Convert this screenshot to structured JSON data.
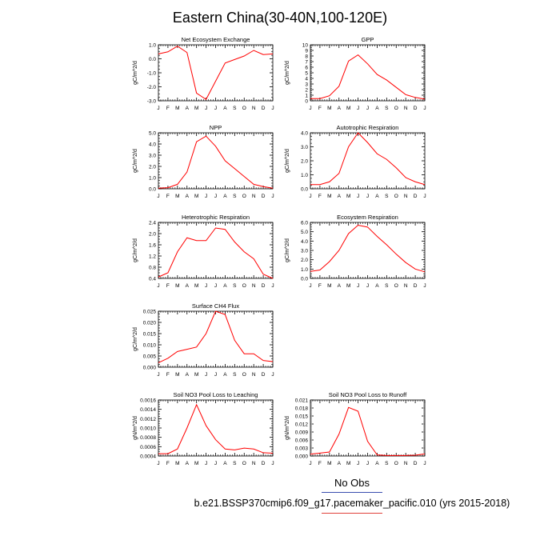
{
  "page": {
    "title": "Eastern China(30-40N,100-120E)"
  },
  "legend": {
    "obs_label": "No Obs",
    "case_label": "b.e21.BSSP370cmip6.f09_g17.pacemaker_pacific.010 (yrs 2015-2018)",
    "obs_color": "#3b4fb0",
    "case_color": "#e0413a"
  },
  "chart_data": [
    {
      "id": "nee",
      "type": "line",
      "title": "Net Ecosystem Exchange",
      "ylabel": "gC/m^2/d",
      "x": [
        "J",
        "F",
        "M",
        "A",
        "M",
        "J",
        "J",
        "A",
        "S",
        "O",
        "N",
        "D",
        "J"
      ],
      "ylim": [
        -3.0,
        1.0
      ],
      "yticks": [
        1.0,
        0.0,
        -1.0,
        -2.0,
        -3.0
      ],
      "ytick_labels": [
        "1.0",
        "0.0",
        "-1.0",
        "-2.0",
        "-3.0"
      ],
      "series": [
        {
          "color": "#ff0000",
          "values": [
            0.35,
            0.5,
            0.9,
            0.45,
            -2.45,
            -2.9,
            -1.6,
            -0.3,
            -0.05,
            0.2,
            0.6,
            0.3,
            0.35
          ]
        }
      ]
    },
    {
      "id": "gpp",
      "type": "line",
      "title": "GPP",
      "ylabel": "gC/m^2/d",
      "x": [
        "J",
        "F",
        "M",
        "A",
        "M",
        "J",
        "J",
        "A",
        "S",
        "O",
        "N",
        "D",
        "J"
      ],
      "ylim": [
        0,
        10
      ],
      "yticks": [
        0,
        1,
        2,
        3,
        4,
        5,
        6,
        7,
        8,
        9,
        10
      ],
      "ytick_labels": [
        "0",
        "1",
        "2",
        "3",
        "4",
        "5",
        "6",
        "7",
        "8",
        "9",
        "10"
      ],
      "series": [
        {
          "color": "#ff0000",
          "values": [
            0.4,
            0.4,
            0.9,
            2.6,
            7.1,
            8.2,
            6.6,
            4.7,
            3.7,
            2.4,
            1.1,
            0.6,
            0.3
          ]
        }
      ]
    },
    {
      "id": "npp",
      "type": "line",
      "title": "NPP",
      "ylabel": "gC/m^2/d",
      "x": [
        "J",
        "F",
        "M",
        "A",
        "M",
        "J",
        "J",
        "A",
        "S",
        "O",
        "N",
        "D",
        "J"
      ],
      "ylim": [
        0.0,
        5.0
      ],
      "yticks": [
        0.0,
        1.0,
        2.0,
        3.0,
        4.0,
        5.0
      ],
      "ytick_labels": [
        "0.0",
        "1.0",
        "2.0",
        "3.0",
        "4.0",
        "5.0"
      ],
      "series": [
        {
          "color": "#ff0000",
          "values": [
            0.05,
            0.1,
            0.4,
            1.5,
            4.2,
            4.7,
            3.8,
            2.5,
            1.8,
            1.1,
            0.4,
            0.2,
            0.05
          ]
        }
      ]
    },
    {
      "id": "ar",
      "type": "line",
      "title": "Autotrophic Respiration",
      "ylabel": "gC/m^2/d",
      "x": [
        "J",
        "F",
        "M",
        "A",
        "M",
        "J",
        "J",
        "A",
        "S",
        "O",
        "N",
        "D",
        "J"
      ],
      "ylim": [
        0.0,
        4.0
      ],
      "yticks": [
        0.0,
        1.0,
        2.0,
        3.0,
        4.0
      ],
      "ytick_labels": [
        "0.0",
        "1.0",
        "2.0",
        "3.0",
        "4.0"
      ],
      "series": [
        {
          "color": "#ff0000",
          "values": [
            0.3,
            0.3,
            0.5,
            1.1,
            3.0,
            4.0,
            3.3,
            2.5,
            2.1,
            1.5,
            0.8,
            0.5,
            0.3
          ]
        }
      ]
    },
    {
      "id": "hr",
      "type": "line",
      "title": "Heterotrophic Respiration",
      "ylabel": "gC/m^2/d",
      "x": [
        "J",
        "F",
        "M",
        "A",
        "M",
        "J",
        "J",
        "A",
        "S",
        "O",
        "N",
        "D",
        "J"
      ],
      "ylim": [
        0.4,
        2.4
      ],
      "yticks": [
        0.4,
        0.8,
        1.2,
        1.6,
        2.0,
        2.4
      ],
      "ytick_labels": [
        "0.4",
        "0.8",
        "1.2",
        "1.6",
        "2.0",
        "2.4"
      ],
      "series": [
        {
          "color": "#ff0000",
          "values": [
            0.45,
            0.6,
            1.35,
            1.85,
            1.75,
            1.75,
            2.2,
            2.15,
            1.7,
            1.35,
            1.1,
            0.55,
            0.4
          ]
        }
      ]
    },
    {
      "id": "er",
      "type": "line",
      "title": "Ecosystem Respiration",
      "ylabel": "gC/m^2/d",
      "x": [
        "J",
        "F",
        "M",
        "A",
        "M",
        "J",
        "J",
        "A",
        "S",
        "O",
        "N",
        "D",
        "J"
      ],
      "ylim": [
        0.0,
        6.0
      ],
      "yticks": [
        0.0,
        1.0,
        2.0,
        3.0,
        4.0,
        5.0,
        6.0
      ],
      "ytick_labels": [
        "0.0",
        "1.0",
        "2.0",
        "3.0",
        "4.0",
        "5.0",
        "6.0"
      ],
      "series": [
        {
          "color": "#ff0000",
          "values": [
            0.75,
            0.9,
            1.8,
            3.0,
            4.8,
            5.7,
            5.5,
            4.5,
            3.6,
            2.6,
            1.7,
            1.0,
            0.7
          ]
        }
      ]
    },
    {
      "id": "ch4",
      "type": "line",
      "title": "Surface CH4 Flux",
      "ylabel": "gC/m^2/d",
      "x": [
        "J",
        "F",
        "M",
        "A",
        "M",
        "J",
        "J",
        "A",
        "S",
        "O",
        "N",
        "D",
        "J"
      ],
      "ylim": [
        0.0,
        0.025
      ],
      "yticks": [
        0.0,
        0.005,
        0.01,
        0.015,
        0.02,
        0.025
      ],
      "ytick_labels": [
        "0.000",
        "0.005",
        "0.010",
        "0.015",
        "0.020",
        "0.025"
      ],
      "series": [
        {
          "color": "#ff0000",
          "values": [
            0.002,
            0.004,
            0.007,
            0.008,
            0.009,
            0.015,
            0.025,
            0.0235,
            0.012,
            0.006,
            0.006,
            0.003,
            0.0025
          ]
        }
      ]
    },
    {
      "id": "leach",
      "type": "line",
      "title": "Soil NO3 Pool Loss to Leaching",
      "ylabel": "gN/m^2/d",
      "x": [
        "J",
        "F",
        "M",
        "A",
        "M",
        "J",
        "J",
        "A",
        "S",
        "O",
        "N",
        "D",
        "J"
      ],
      "ylim": [
        0.0004,
        0.0016
      ],
      "yticks": [
        0.0004,
        0.0006,
        0.0008,
        0.001,
        0.0012,
        0.0014,
        0.0016
      ],
      "ytick_labels": [
        "0.0004",
        "0.0006",
        "0.0008",
        "0.0010",
        "0.0012",
        "0.0014",
        "0.0016"
      ],
      "series": [
        {
          "color": "#ff0000",
          "values": [
            0.00045,
            0.00045,
            0.00055,
            0.001,
            0.0015,
            0.00105,
            0.00075,
            0.00055,
            0.00053,
            0.00057,
            0.00055,
            0.00047,
            0.00046
          ]
        }
      ]
    },
    {
      "id": "runoff",
      "type": "line",
      "title": "Soil NO3 Pool Loss to Runoff",
      "ylabel": "gN/m^2/d",
      "x": [
        "J",
        "F",
        "M",
        "A",
        "M",
        "J",
        "J",
        "A",
        "S",
        "O",
        "N",
        "D",
        "J"
      ],
      "ylim": [
        0.0,
        0.021
      ],
      "yticks": [
        0.0,
        0.003,
        0.006,
        0.009,
        0.012,
        0.015,
        0.018,
        0.021
      ],
      "ytick_labels": [
        "0.000",
        "0.003",
        "0.006",
        "0.009",
        "0.012",
        "0.015",
        "0.018",
        "0.021"
      ],
      "series": [
        {
          "color": "#ff0000",
          "values": [
            0.0007,
            0.0011,
            0.0015,
            0.0082,
            0.0182,
            0.0168,
            0.0055,
            0.0004,
            0.0002,
            0.0002,
            0.0002,
            0.0003,
            0.0008
          ]
        }
      ]
    }
  ]
}
